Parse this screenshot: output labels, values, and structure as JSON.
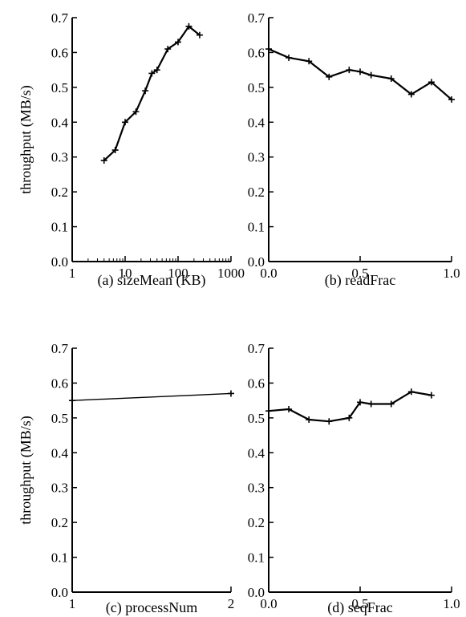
{
  "chart_data": [
    {
      "type": "line",
      "panel": "a",
      "caption": "(a) sizeMean (KB)",
      "ylabel": "throughput (MB/s)",
      "xscale": "log",
      "xlim": [
        1,
        1000
      ],
      "ylim": [
        0.0,
        0.7
      ],
      "xticks": [
        "1",
        "10",
        "100",
        "1000"
      ],
      "yticks": [
        "0.0",
        "0.1",
        "0.2",
        "0.3",
        "0.4",
        "0.5",
        "0.6",
        "0.7"
      ],
      "grid": false,
      "series": [
        {
          "x": [
            4,
            6.5,
            10,
            16,
            24,
            32,
            40,
            64,
            100,
            160,
            256
          ],
          "y": [
            0.29,
            0.32,
            0.4,
            0.43,
            0.49,
            0.54,
            0.55,
            0.61,
            0.63,
            0.675,
            0.65
          ]
        }
      ]
    },
    {
      "type": "line",
      "panel": "b",
      "caption": "(b) readFrac",
      "ylabel": "",
      "xscale": "linear",
      "xlim": [
        0.0,
        1.0
      ],
      "ylim": [
        0.0,
        0.7
      ],
      "xticks": [
        "0.0",
        "0.5",
        "1.0"
      ],
      "yticks": [
        "0.0",
        "0.1",
        "0.2",
        "0.3",
        "0.4",
        "0.5",
        "0.6",
        "0.7"
      ],
      "grid": false,
      "series": [
        {
          "x": [
            0.0,
            0.11,
            0.22,
            0.33,
            0.44,
            0.5,
            0.56,
            0.67,
            0.78,
            0.89,
            1.0
          ],
          "y": [
            0.61,
            0.585,
            0.575,
            0.53,
            0.55,
            0.545,
            0.535,
            0.525,
            0.48,
            0.515,
            0.465
          ]
        }
      ]
    },
    {
      "type": "line",
      "panel": "c",
      "caption": "(c) processNum",
      "ylabel": "throughput (MB/s)",
      "xscale": "linear",
      "xlim": [
        1,
        2
      ],
      "ylim": [
        0.0,
        0.7
      ],
      "xticks": [
        "1",
        "2"
      ],
      "yticks": [
        "0.0",
        "0.1",
        "0.2",
        "0.3",
        "0.4",
        "0.5",
        "0.6",
        "0.7"
      ],
      "grid": false,
      "series": [
        {
          "x": [
            1,
            2
          ],
          "y": [
            0.55,
            0.57
          ]
        }
      ]
    },
    {
      "type": "line",
      "panel": "d",
      "caption": "(d) seqFrac",
      "ylabel": "",
      "xscale": "linear",
      "xlim": [
        0.0,
        1.0
      ],
      "ylim": [
        0.0,
        0.7
      ],
      "xticks": [
        "0.0",
        "0.5",
        "1.0"
      ],
      "yticks": [
        "0.0",
        "0.1",
        "0.2",
        "0.3",
        "0.4",
        "0.5",
        "0.6",
        "0.7"
      ],
      "grid": false,
      "series": [
        {
          "x": [
            0.0,
            0.11,
            0.22,
            0.33,
            0.44,
            0.5,
            0.56,
            0.67,
            0.78,
            0.89
          ],
          "y": [
            0.52,
            0.525,
            0.495,
            0.49,
            0.5,
            0.545,
            0.54,
            0.54,
            0.575,
            0.565
          ]
        }
      ]
    }
  ]
}
